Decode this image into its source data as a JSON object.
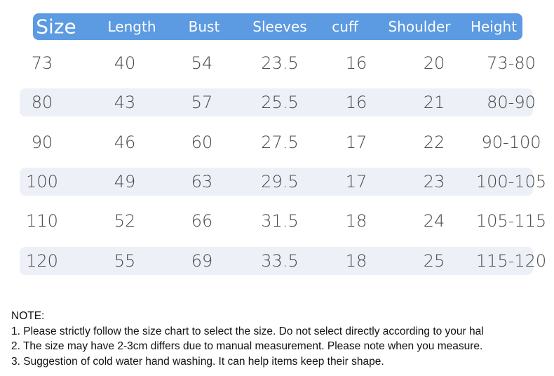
{
  "table": {
    "header": [
      "Size",
      "Length",
      "Bust",
      "Sleeves",
      "cuff",
      "Shoulder",
      "Height"
    ],
    "rows": [
      [
        "73",
        "40",
        "54",
        "23.5",
        "16",
        "20",
        "73-80"
      ],
      [
        "80",
        "43",
        "57",
        "25.5",
        "16",
        "21",
        "80-90"
      ],
      [
        "90",
        "46",
        "60",
        "27.5",
        "17",
        "22",
        "90-100"
      ],
      [
        "100",
        "49",
        "63",
        "29.5",
        "17",
        "23",
        "100-105"
      ],
      [
        "110",
        "52",
        "66",
        "31.5",
        "18",
        "24",
        "105-115"
      ],
      [
        "120",
        "55",
        "69",
        "33.5",
        "18",
        "25",
        "115-120"
      ]
    ]
  },
  "notes": {
    "title": "NOTE:",
    "items": [
      "1. Please strictly follow the size chart to select the size. Do not select directly according to your hal",
      "2. The size may have 2-3cm differs due to manual measurement. Please note when you measure.",
      "3. Suggestion of cold water hand washing. It can help items keep their shape."
    ]
  }
}
